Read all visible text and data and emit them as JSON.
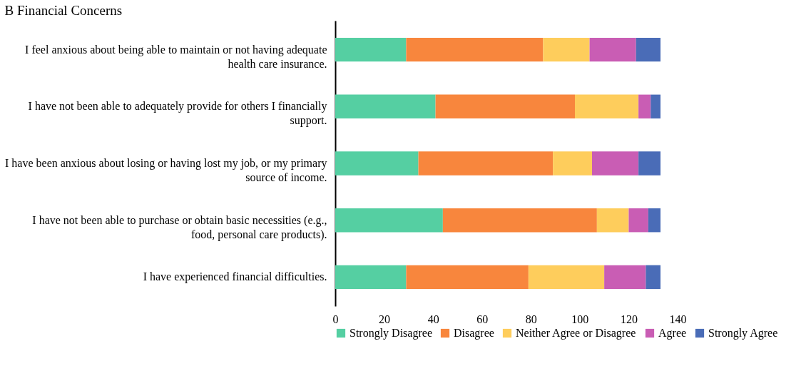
{
  "chart_data": {
    "type": "bar",
    "orientation": "horizontal",
    "stacked": true,
    "title": "B Financial Concerns",
    "categories": [
      "I feel anxious about being able to maintain or not having adequate health care insurance.",
      "I have not been able to adequately provide for others I financially support.",
      "I have been anxious about losing or having lost my job, or my primary source of income.",
      "I have not been able to purchase or obtain basic necessities (e.g., food, personal care products).",
      "I have experienced financial difficulties."
    ],
    "series": [
      {
        "name": "Strongly Disagree",
        "color": "#55cfa2",
        "values": [
          29,
          41,
          34,
          44,
          29
        ]
      },
      {
        "name": "Disagree",
        "color": "#f8863d",
        "values": [
          56,
          57,
          55,
          63,
          50
        ]
      },
      {
        "name": "Neither Agree or Disagree",
        "color": "#fecd5c",
        "values": [
          19,
          26,
          16,
          13,
          31
        ]
      },
      {
        "name": "Agree",
        "color": "#c95db4",
        "values": [
          19,
          5,
          19,
          8,
          17
        ]
      },
      {
        "name": "Strongly Agree",
        "color": "#4a6cb7",
        "values": [
          10,
          4,
          9,
          5,
          6
        ]
      }
    ],
    "xlim": [
      0,
      140
    ],
    "xticks": [
      0,
      20,
      40,
      60,
      80,
      100,
      120,
      140
    ],
    "grid": false,
    "legend": "bottom"
  }
}
